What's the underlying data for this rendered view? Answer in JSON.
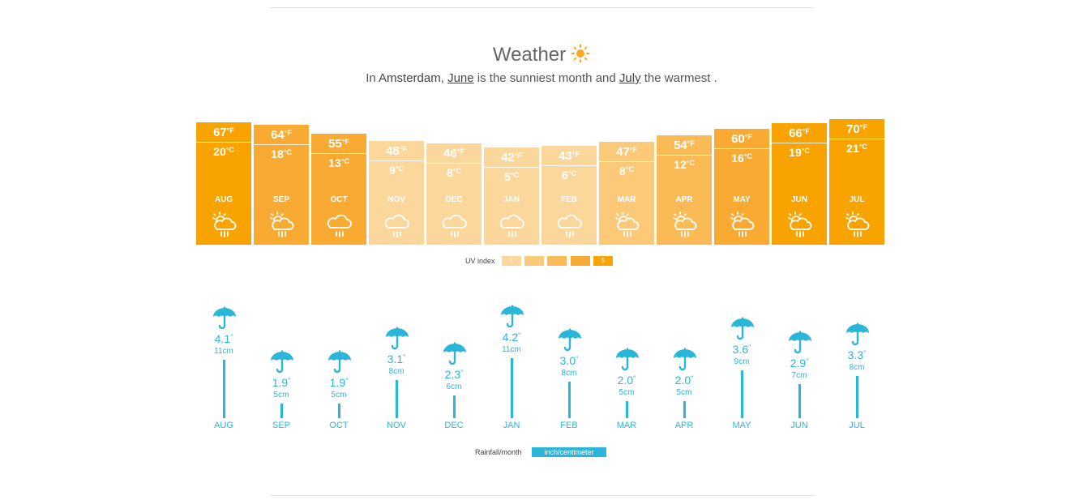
{
  "header": {
    "title": "Weather",
    "subtitle_prefix": "In",
    "city": "Amsterdam",
    "comma": ",",
    "sunniest_month": "June",
    "mid_text": "is the sunniest month and",
    "warmest_month": "July",
    "suffix": "the warmest ."
  },
  "colors": {
    "uv1": "#fbd79c",
    "uv2": "#fbc978",
    "uv3": "#fabb56",
    "uv4": "#f9aa33",
    "uv5": "#f9a300",
    "rain": "#29b6d8",
    "sun": "#f9a825"
  },
  "uv_legend": {
    "label": "UV index",
    "levels": [
      "1",
      "",
      "",
      "",
      "5"
    ]
  },
  "rain_legend": {
    "label": "Rainfall/month",
    "unit": "inch/centimeter"
  },
  "chart_data": [
    {
      "type": "bar",
      "categories": [
        "AUG",
        "SEP",
        "OCT",
        "NOV",
        "DEC",
        "JAN",
        "FEB",
        "MAR",
        "APR",
        "MAY",
        "JUN",
        "JUL"
      ],
      "series": [
        {
          "name": "°F",
          "values": [
            67,
            64,
            55,
            48,
            46,
            42,
            43,
            47,
            54,
            60,
            66,
            70
          ]
        },
        {
          "name": "°C",
          "values": [
            20,
            18,
            13,
            9,
            8,
            5,
            6,
            8,
            12,
            16,
            19,
            21
          ]
        }
      ],
      "temp_unit_f": "°F",
      "temp_unit_c": "°C",
      "uv_index": [
        5,
        4,
        4,
        1,
        1,
        1,
        1,
        2,
        3,
        4,
        5,
        5
      ],
      "weather_icons": [
        "sun-cloud-rain-icon",
        "sun-cloud-rain-icon",
        "cloud-rain-icon",
        "cloud-rain-icon",
        "cloud-rain-icon",
        "cloud-rain-icon",
        "cloud-rain-icon",
        "sun-cloud-rain-icon",
        "sun-cloud-rain-icon",
        "sun-cloud-rain-icon",
        "sun-cloud-rain-icon",
        "sun-cloud-rain-icon"
      ]
    },
    {
      "type": "bar",
      "categories": [
        "AUG",
        "SEP",
        "OCT",
        "NOV",
        "DEC",
        "JAN",
        "FEB",
        "MAR",
        "APR",
        "MAY",
        "JUN",
        "JUL"
      ],
      "series": [
        {
          "name": "inch",
          "values": [
            4.1,
            1.9,
            1.9,
            3.1,
            2.3,
            4.2,
            3.0,
            2.0,
            2.0,
            3.6,
            2.9,
            3.3
          ]
        },
        {
          "name": "cm",
          "values": [
            11,
            5,
            5,
            8,
            6,
            11,
            8,
            5,
            5,
            9,
            7,
            8
          ]
        }
      ],
      "inch_labels": [
        "4.1",
        "1.9",
        "1.9",
        "3.1",
        "2.3",
        "4.2",
        "3.0",
        "2.0",
        "2.0",
        "3.6",
        "2.9",
        "3.3"
      ],
      "inch_unit": "\"",
      "cm_unit": "cm"
    }
  ]
}
